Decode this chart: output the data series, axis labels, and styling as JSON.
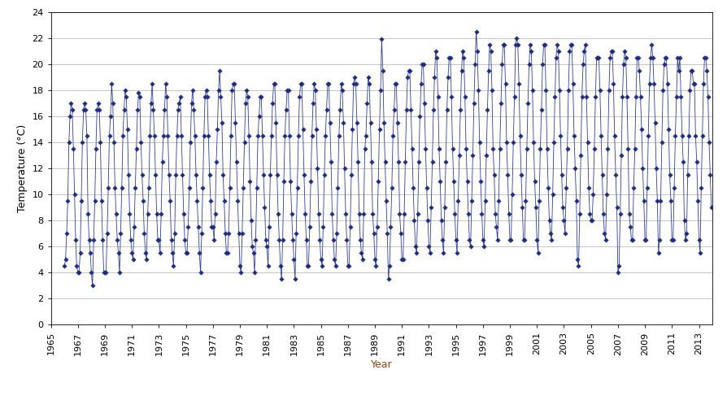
{
  "title": "",
  "xlabel": "Year",
  "ylabel": "Temperature (°C)",
  "xlim": [
    1965,
    2014
  ],
  "ylim": [
    0,
    24
  ],
  "yticks": [
    0,
    2,
    4,
    6,
    8,
    10,
    12,
    14,
    16,
    18,
    20,
    22,
    24
  ],
  "xticks": [
    1965,
    1967,
    1969,
    1971,
    1973,
    1975,
    1977,
    1979,
    1981,
    1983,
    1985,
    1987,
    1989,
    1991,
    1993,
    1995,
    1997,
    1999,
    2001,
    2003,
    2005,
    2007,
    2009,
    2011,
    2013
  ],
  "line_color": "#2F3D8F",
  "marker_color": "#1F2D7F",
  "bg_color": "#ffffff",
  "grid_color": "#000000",
  "xlabel_color": "#8B4513",
  "start_year": 1966,
  "end_year": 2013,
  "monthly_means": [
    4.5,
    5.0,
    7.0,
    9.5,
    14.0,
    16.0,
    17.0,
    16.5,
    13.5,
    10.0,
    6.5,
    4.5,
    4.0,
    4.0,
    5.5,
    9.5,
    14.0,
    16.5,
    17.0,
    16.5,
    14.5,
    8.5,
    6.5,
    5.5,
    4.0,
    3.0,
    6.5,
    9.5,
    13.5,
    16.5,
    17.0,
    16.5,
    14.0,
    9.5,
    6.5,
    4.0,
    4.0,
    4.0,
    7.0,
    10.5,
    14.5,
    16.0,
    18.5,
    17.0,
    14.0,
    10.5,
    8.5,
    6.5,
    5.5,
    4.0,
    7.0,
    10.5,
    14.5,
    16.5,
    18.0,
    17.5,
    15.0,
    11.5,
    8.5,
    6.5,
    5.5,
    5.0,
    7.5,
    10.5,
    13.5,
    16.5,
    17.8,
    17.5,
    14.0,
    11.5,
    9.5,
    7.0,
    5.5,
    5.0,
    8.5,
    10.5,
    14.5,
    17.0,
    18.5,
    16.5,
    14.5,
    11.5,
    8.5,
    6.5,
    6.5,
    5.5,
    8.5,
    12.5,
    14.5,
    16.5,
    18.5,
    17.5,
    14.5,
    11.5,
    9.5,
    6.5,
    5.5,
    4.5,
    7.0,
    11.5,
    14.5,
    16.5,
    17.0,
    17.5,
    14.5,
    11.5,
    8.5,
    6.5,
    5.5,
    5.5,
    7.5,
    10.5,
    14.0,
    17.0,
    18.0,
    16.5,
    14.5,
    11.5,
    9.5,
    7.5,
    5.5,
    4.0,
    7.0,
    10.5,
    14.5,
    17.5,
    18.0,
    17.5,
    14.5,
    11.5,
    9.5,
    7.5,
    7.5,
    6.5,
    8.5,
    12.5,
    15.0,
    18.0,
    19.5,
    17.5,
    15.5,
    11.5,
    9.5,
    7.0,
    5.5,
    5.5,
    7.0,
    10.5,
    14.5,
    18.0,
    18.5,
    18.5,
    15.5,
    12.5,
    9.5,
    7.0,
    4.5,
    4.0,
    7.0,
    10.5,
    14.0,
    17.0,
    18.0,
    17.5,
    14.5,
    11.0,
    8.0,
    6.0,
    5.5,
    4.0,
    6.5,
    10.5,
    14.5,
    16.0,
    17.5,
    17.5,
    14.5,
    11.5,
    9.0,
    6.5,
    6.0,
    4.5,
    7.5,
    11.5,
    14.5,
    17.0,
    18.5,
    18.5,
    15.5,
    11.5,
    8.5,
    6.5,
    4.5,
    3.5,
    6.5,
    11.0,
    14.5,
    16.5,
    18.0,
    18.0,
    14.5,
    11.0,
    8.5,
    6.5,
    5.0,
    3.5,
    7.0,
    10.5,
    14.5,
    17.5,
    18.5,
    18.5,
    15.0,
    11.5,
    8.5,
    6.5,
    4.5,
    4.5,
    7.5,
    11.0,
    14.5,
    17.0,
    18.5,
    18.0,
    15.0,
    12.0,
    8.5,
    6.5,
    5.0,
    4.5,
    7.5,
    11.5,
    14.5,
    16.5,
    18.5,
    18.5,
    15.5,
    12.5,
    8.5,
    6.5,
    5.0,
    4.5,
    7.0,
    10.5,
    14.5,
    16.5,
    18.5,
    18.0,
    15.5,
    12.0,
    8.5,
    6.5,
    4.5,
    4.5,
    7.5,
    11.5,
    15.0,
    18.5,
    19.0,
    18.5,
    15.5,
    12.5,
    8.5,
    6.5,
    5.5,
    5.0,
    8.5,
    13.5,
    14.5,
    17.0,
    19.0,
    18.5,
    15.5,
    12.5,
    8.5,
    7.0,
    5.0,
    4.5,
    7.5,
    11.0,
    15.0,
    18.0,
    21.9,
    19.5,
    15.5,
    12.5,
    9.5,
    7.0,
    3.5,
    4.5,
    7.5,
    10.5,
    14.5,
    16.5,
    18.5,
    18.5,
    15.5,
    12.5,
    8.5,
    7.0,
    5.0,
    5.0,
    8.5,
    12.5,
    16.5,
    19.0,
    19.5,
    19.5,
    16.5,
    13.5,
    10.5,
    8.0,
    6.0,
    5.5,
    8.5,
    12.5,
    16.0,
    18.5,
    20.0,
    20.0,
    17.0,
    13.5,
    10.5,
    8.0,
    6.0,
    5.5,
    9.0,
    12.5,
    16.5,
    19.0,
    21.0,
    20.5,
    17.5,
    13.5,
    11.0,
    8.0,
    6.5,
    5.5,
    9.0,
    12.5,
    16.5,
    19.0,
    20.5,
    20.5,
    17.5,
    13.5,
    11.0,
    8.5,
    6.5,
    5.5,
    9.5,
    13.0,
    16.5,
    19.5,
    21.0,
    20.5,
    17.5,
    13.5,
    11.0,
    8.5,
    6.5,
    6.0,
    9.5,
    13.0,
    17.0,
    20.0,
    22.5,
    21.0,
    18.0,
    14.0,
    11.0,
    8.5,
    6.5,
    6.0,
    9.5,
    13.0,
    16.5,
    19.5,
    21.5,
    21.0,
    18.0,
    13.5,
    11.5,
    8.5,
    7.5,
    6.5,
    9.5,
    13.5,
    17.0,
    20.0,
    21.5,
    21.5,
    18.5,
    14.0,
    11.5,
    8.5,
    6.5,
    6.5,
    10.0,
    14.0,
    17.5,
    21.5,
    22.0,
    21.5,
    18.5,
    14.5,
    11.5,
    9.0,
    6.5,
    6.5,
    9.5,
    13.5,
    17.0,
    20.0,
    21.5,
    21.0,
    18.0,
    14.0,
    11.0,
    9.0,
    6.5,
    5.5,
    9.5,
    13.5,
    16.5,
    20.0,
    21.5,
    21.5,
    18.0,
    13.5,
    10.5,
    8.0,
    7.0,
    6.5,
    10.0,
    14.0,
    17.5,
    20.5,
    21.5,
    21.0,
    18.0,
    14.5,
    11.5,
    9.0,
    8.0,
    7.0,
    10.5,
    13.5,
    18.0,
    21.0,
    21.5,
    21.5,
    18.5,
    14.5,
    12.0,
    9.5,
    5.0,
    4.5,
    8.5,
    13.0,
    17.5,
    20.0,
    21.0,
    21.5,
    17.5,
    14.0,
    10.5,
    8.5,
    8.0,
    8.0,
    10.0,
    13.5,
    17.5,
    20.5,
    20.5,
    20.5,
    18.0,
    14.5,
    11.5,
    8.5,
    7.0,
    6.5,
    10.0,
    13.5,
    18.0,
    20.5,
    21.0,
    21.0,
    18.5,
    14.5,
    11.5,
    9.0,
    4.0,
    4.5,
    8.5,
    13.0,
    17.5,
    20.0,
    21.0,
    20.5,
    17.5,
    13.5,
    8.5,
    7.5,
    6.5,
    6.5,
    10.5,
    13.5,
    17.5,
    20.5,
    20.5,
    19.5,
    17.5,
    15.0,
    12.0,
    9.5,
    6.5,
    6.5,
    10.5,
    14.5,
    18.5,
    20.5,
    21.5,
    20.5,
    18.5,
    15.5,
    12.0,
    9.5,
    5.5,
    6.5,
    9.5,
    14.0,
    18.0,
    20.0,
    20.5,
    20.5,
    18.5,
    15.0,
    11.5,
    9.5,
    6.5,
    6.5,
    10.5,
    14.5,
    17.5,
    20.5,
    19.5,
    20.5,
    17.5,
    14.5,
    12.5,
    8.0,
    6.5,
    7.0,
    11.5,
    14.5,
    18.0,
    19.5,
    19.5,
    18.5,
    18.5,
    14.5,
    12.5,
    9.5,
    6.5,
    5.5,
    10.5,
    14.5,
    18.5,
    20.5,
    20.5,
    19.5,
    17.5,
    14.0,
    11.5,
    9.0
  ]
}
